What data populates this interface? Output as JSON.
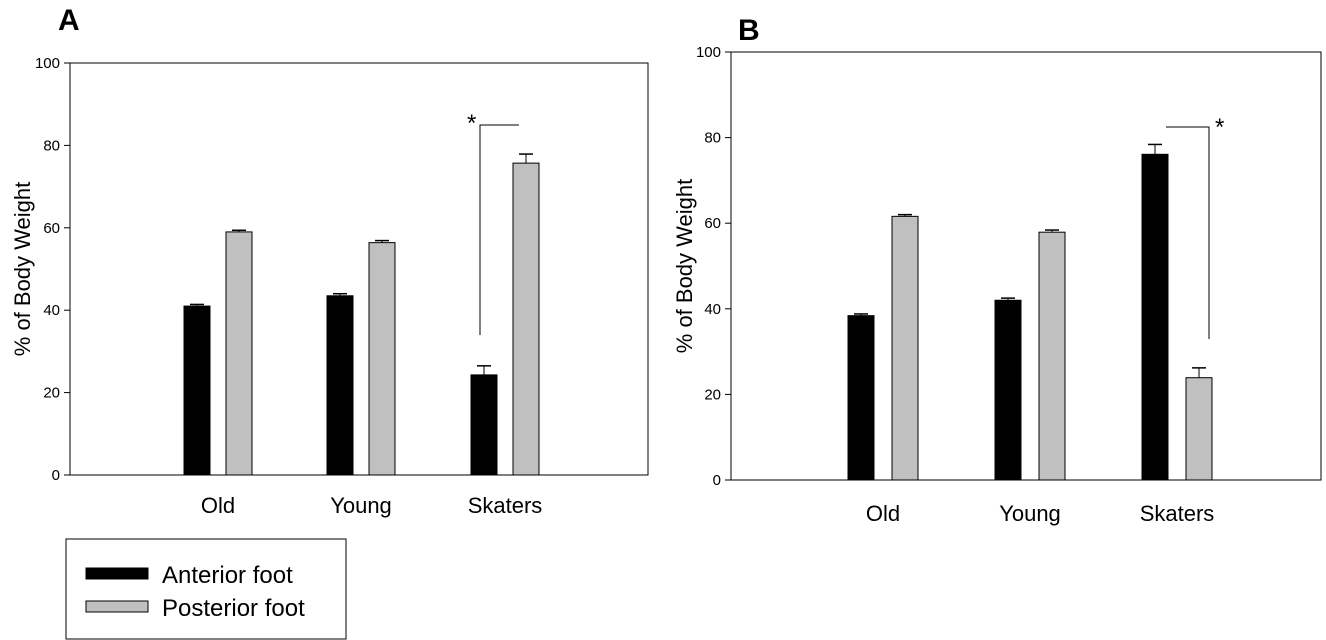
{
  "colors": {
    "anterior": "#000000",
    "posterior": "#c0c0c0",
    "frame": "#000000"
  },
  "legend": {
    "items": [
      {
        "label": "Anterior foot",
        "color": "#000000"
      },
      {
        "label": "Posterior foot",
        "color": "#c0c0c0"
      }
    ]
  },
  "chart_data": [
    {
      "type": "bar",
      "panel": "A",
      "ylabel": "% of Body Weight",
      "ylim": [
        0,
        100
      ],
      "yticks": [
        "0",
        "20",
        "40",
        "60",
        "80",
        "100"
      ],
      "categories": [
        "Old",
        "Young",
        "Skaters"
      ],
      "series": [
        {
          "name": "Anterior foot",
          "values": [
            41,
            43.5,
            24.3
          ],
          "errors": [
            0.4,
            0.5,
            2.2
          ]
        },
        {
          "name": "Posterior foot",
          "values": [
            59,
            56.4,
            75.7
          ],
          "errors": [
            0.4,
            0.5,
            2.2
          ]
        }
      ],
      "annotations": [
        {
          "text": "*",
          "category": "Skaters"
        }
      ],
      "grid": false,
      "legend_position": "bottom-left"
    },
    {
      "type": "bar",
      "panel": "B",
      "ylabel": "% of Body Weight",
      "ylim": [
        0,
        100
      ],
      "yticks": [
        "0",
        "20",
        "40",
        "60",
        "80",
        "100"
      ],
      "categories": [
        "Old",
        "Young",
        "Skaters"
      ],
      "series": [
        {
          "name": "Anterior foot",
          "values": [
            38.4,
            42,
            76.1
          ],
          "errors": [
            0.4,
            0.5,
            2.3
          ]
        },
        {
          "name": "Posterior foot",
          "values": [
            61.6,
            57.9,
            23.9
          ],
          "errors": [
            0.4,
            0.5,
            2.3
          ]
        }
      ],
      "annotations": [
        {
          "text": "*",
          "category": "Skaters"
        }
      ],
      "grid": false
    }
  ]
}
